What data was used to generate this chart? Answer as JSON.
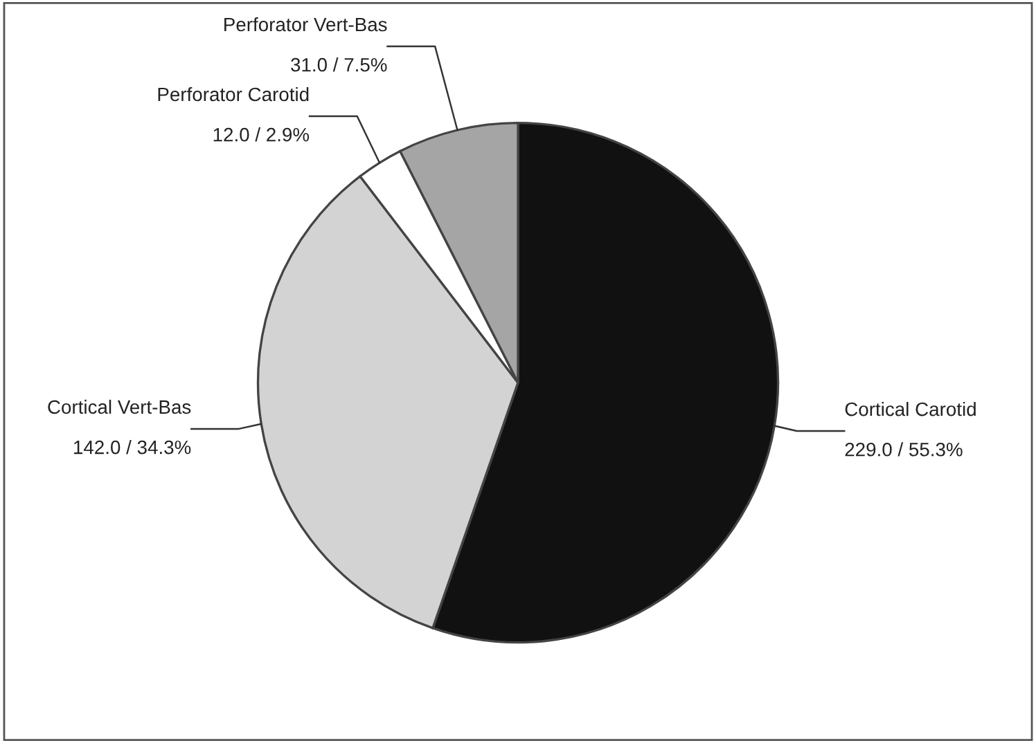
{
  "chart_data": {
    "type": "pie",
    "categories": [
      "Cortical Carotid",
      "Cortical Vert-Bas",
      "Perforator Carotid",
      "Perforator Vert-Bas"
    ],
    "values": [
      229.0,
      142.0,
      12.0,
      31.0
    ],
    "colors": [
      "#111111",
      "#d3d3d3",
      "#ffffff",
      "#a5a5a5"
    ],
    "value_labels": [
      "229.0 / 55.3%",
      "142.0 / 34.3%",
      "12.0 / 2.9%",
      "31.0 / 7.5%"
    ],
    "legend": false
  }
}
